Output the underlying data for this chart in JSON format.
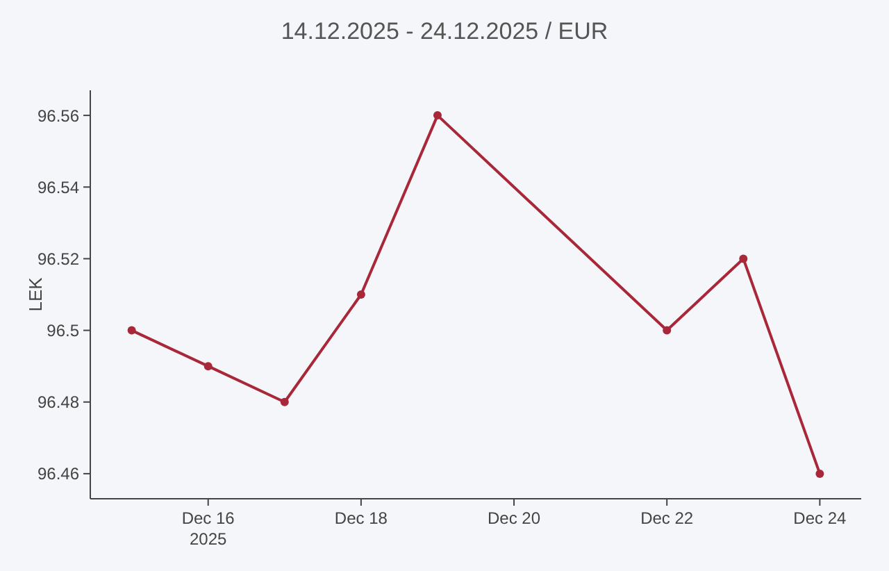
{
  "chart_data": {
    "type": "line",
    "title": "14.12.2025 - 24.12.2025 / EUR",
    "ylabel": "LEK",
    "x": [
      "2025-12-15",
      "2025-12-16",
      "2025-12-17",
      "2025-12-18",
      "2025-12-19",
      "2025-12-22",
      "2025-12-23",
      "2025-12-24"
    ],
    "series": [
      {
        "color": "#a8283a",
        "values": [
          96.5,
          96.49,
          96.48,
          96.51,
          96.56,
          96.5,
          96.52,
          96.46
        ]
      }
    ],
    "xlim": [
      "2025-12-14T11:00",
      "2025-12-24T13:00"
    ],
    "xticks": [
      {
        "value": "2025-12-16",
        "label": "Dec 16\n2025"
      },
      {
        "value": "2025-12-18",
        "label": "Dec 18"
      },
      {
        "value": "2025-12-20",
        "label": "Dec 20"
      },
      {
        "value": "2025-12-22",
        "label": "Dec 22"
      },
      {
        "value": "2025-12-24",
        "label": "Dec 24"
      }
    ],
    "ylim": [
      96.453,
      96.567
    ],
    "yticks": [
      96.46,
      96.48,
      96.5,
      96.52,
      96.54,
      96.56
    ],
    "grid": false,
    "marker": "circle",
    "line_style": "solid"
  }
}
